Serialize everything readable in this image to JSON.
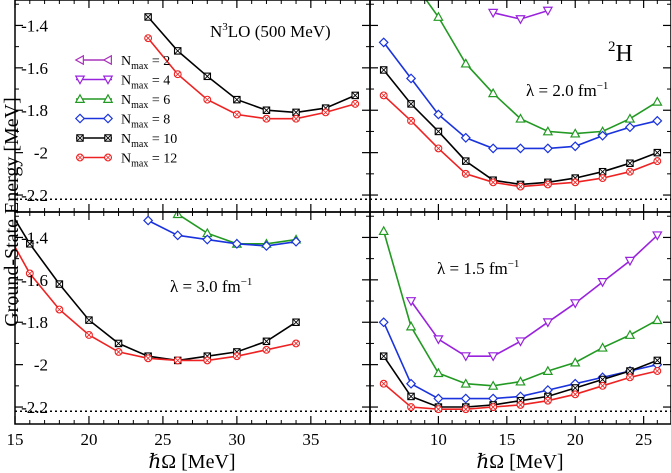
{
  "figure": {
    "ylabel": "Ground-State Energy [MeV]",
    "reference_energy": -2.22,
    "nucleus_mass": "2",
    "nucleus_symbol": "H"
  },
  "legend": {
    "series": [
      {
        "nmax": "2",
        "color": "#aa33bb",
        "marker": "left-triangle"
      },
      {
        "nmax": "4",
        "color": "#9922dd",
        "marker": "down-triangle"
      },
      {
        "nmax": "6",
        "color": "#229922",
        "marker": "up-triangle"
      },
      {
        "nmax": "8",
        "color": "#1a33dd",
        "marker": "diamond"
      },
      {
        "nmax": "10",
        "color": "#000000",
        "marker": "x-square"
      },
      {
        "nmax": "12",
        "color": "#ee2222",
        "marker": "x-circle"
      }
    ]
  },
  "chart_data": [
    {
      "type": "line",
      "panel": "top-left",
      "label": "N3LO (500 MeV)",
      "xlabel": "",
      "xlim": [
        15,
        39
      ],
      "ylim": [
        -2.28,
        -1.28
      ],
      "yticks": [
        "-1.4",
        "-1.6",
        "-1.8",
        "-2",
        "-2.2"
      ],
      "series": [
        {
          "name": "Nmax = 10",
          "x": [
            24,
            26,
            28,
            30,
            32,
            34,
            36,
            38
          ],
          "y": [
            -1.36,
            -1.52,
            -1.64,
            -1.75,
            -1.8,
            -1.81,
            -1.79,
            -1.73
          ]
        },
        {
          "name": "Nmax = 12",
          "x": [
            24,
            26,
            28,
            30,
            32,
            34,
            36,
            38
          ],
          "y": [
            -1.46,
            -1.63,
            -1.75,
            -1.82,
            -1.84,
            -1.84,
            -1.81,
            -1.77
          ]
        }
      ]
    },
    {
      "type": "line",
      "panel": "top-right",
      "label": "λ = 2.0 fm",
      "label_exponent": "−1",
      "xlabel": "",
      "xlim": [
        5,
        27
      ],
      "ylim": [
        -2.28,
        -1.28
      ],
      "series": [
        {
          "name": "Nmax = 4",
          "x": [
            14,
            16,
            18
          ],
          "y": [
            -1.34,
            -1.37,
            -1.33
          ]
        },
        {
          "name": "Nmax = 6",
          "x": [
            8,
            10,
            12,
            14,
            16,
            18,
            20,
            22,
            24,
            26
          ],
          "y": [
            -1.18,
            -1.36,
            -1.58,
            -1.72,
            -1.84,
            -1.9,
            -1.91,
            -1.9,
            -1.84,
            -1.76
          ]
        },
        {
          "name": "Nmax = 8",
          "x": [
            6,
            8,
            10,
            12,
            14,
            16,
            18,
            20,
            22,
            24,
            26
          ],
          "y": [
            -1.48,
            -1.65,
            -1.82,
            -1.93,
            -1.98,
            -1.98,
            -1.98,
            -1.97,
            -1.92,
            -1.88,
            -1.85
          ]
        },
        {
          "name": "Nmax = 10",
          "x": [
            6,
            8,
            10,
            12,
            14,
            16,
            18,
            20,
            22,
            24,
            26
          ],
          "y": [
            -1.61,
            -1.77,
            -1.9,
            -2.04,
            -2.13,
            -2.15,
            -2.14,
            -2.12,
            -2.09,
            -2.05,
            -2.0
          ]
        },
        {
          "name": "Nmax = 12",
          "x": [
            6,
            8,
            10,
            12,
            14,
            16,
            18,
            20,
            22,
            24,
            26
          ],
          "y": [
            -1.73,
            -1.85,
            -1.98,
            -2.1,
            -2.14,
            -2.16,
            -2.15,
            -2.14,
            -2.12,
            -2.09,
            -2.04
          ]
        }
      ]
    },
    {
      "type": "line",
      "panel": "bottom-left",
      "label": "λ = 3.0 fm",
      "label_exponent": "−1",
      "xlabel": "ℏΩ [MeV]",
      "xlim": [
        15,
        39
      ],
      "ylim": [
        -2.28,
        -1.28
      ],
      "yticks": [
        "-1.4",
        "-1.6",
        "-1.8",
        "-2",
        "-2.2"
      ],
      "xticks": [
        "15",
        "20",
        "25",
        "30",
        "35"
      ],
      "series": [
        {
          "name": "Nmax = 6",
          "x": [
            26,
            28,
            30,
            32,
            34
          ],
          "y": [
            -1.29,
            -1.38,
            -1.43,
            -1.43,
            -1.41
          ]
        },
        {
          "name": "Nmax = 8",
          "x": [
            24,
            26,
            28,
            30,
            32,
            34
          ],
          "y": [
            -1.32,
            -1.39,
            -1.41,
            -1.43,
            -1.44,
            -1.42
          ]
        },
        {
          "name": "Nmax = 10",
          "x": [
            14,
            16,
            18,
            20,
            22,
            24,
            26,
            28,
            30,
            32,
            34
          ],
          "y": [
            -1.2,
            -1.43,
            -1.62,
            -1.79,
            -1.9,
            -1.96,
            -1.98,
            -1.96,
            -1.94,
            -1.89,
            -1.8
          ]
        },
        {
          "name": "Nmax = 12",
          "x": [
            14,
            16,
            18,
            20,
            22,
            24,
            26,
            28,
            30,
            32,
            34
          ],
          "y": [
            -1.32,
            -1.57,
            -1.74,
            -1.86,
            -1.94,
            -1.97,
            -1.98,
            -1.98,
            -1.96,
            -1.93,
            -1.9
          ]
        }
      ]
    },
    {
      "type": "line",
      "panel": "bottom-right",
      "label": "λ = 1.5 fm",
      "label_exponent": "−1",
      "xlabel": "ℏΩ [MeV]",
      "xlim": [
        5,
        27
      ],
      "ylim": [
        -2.28,
        -1.28
      ],
      "xticks": [
        "10",
        "15",
        "20",
        "25"
      ],
      "series": [
        {
          "name": "Nmax = 4",
          "x": [
            8,
            10,
            12,
            14,
            16,
            18,
            20,
            22,
            24,
            26
          ],
          "y": [
            -1.7,
            -1.88,
            -1.96,
            -1.96,
            -1.89,
            -1.8,
            -1.71,
            -1.61,
            -1.51,
            -1.39
          ]
        },
        {
          "name": "Nmax = 6",
          "x": [
            6,
            8,
            10,
            12,
            14,
            16,
            18,
            20,
            22,
            24,
            26
          ],
          "y": [
            -1.37,
            -1.82,
            -2.04,
            -2.09,
            -2.1,
            -2.08,
            -2.03,
            -1.99,
            -1.92,
            -1.86,
            -1.79
          ]
        },
        {
          "name": "Nmax = 8",
          "x": [
            6,
            8,
            10,
            12,
            14,
            16,
            18,
            20,
            22,
            24,
            26
          ],
          "y": [
            -1.8,
            -2.09,
            -2.16,
            -2.16,
            -2.16,
            -2.15,
            -2.12,
            -2.09,
            -2.06,
            -2.03,
            -2.0
          ]
        },
        {
          "name": "Nmax = 10",
          "x": [
            6,
            8,
            10,
            12,
            14,
            16,
            18,
            20,
            22,
            24,
            26
          ],
          "y": [
            -1.96,
            -2.15,
            -2.2,
            -2.2,
            -2.19,
            -2.17,
            -2.15,
            -2.11,
            -2.07,
            -2.03,
            -1.98
          ]
        },
        {
          "name": "Nmax = 12",
          "x": [
            6,
            8,
            10,
            12,
            14,
            16,
            18,
            20,
            22,
            24,
            26
          ],
          "y": [
            -2.09,
            -2.2,
            -2.21,
            -2.21,
            -2.2,
            -2.19,
            -2.17,
            -2.14,
            -2.1,
            -2.06,
            -2.03
          ]
        }
      ]
    }
  ]
}
